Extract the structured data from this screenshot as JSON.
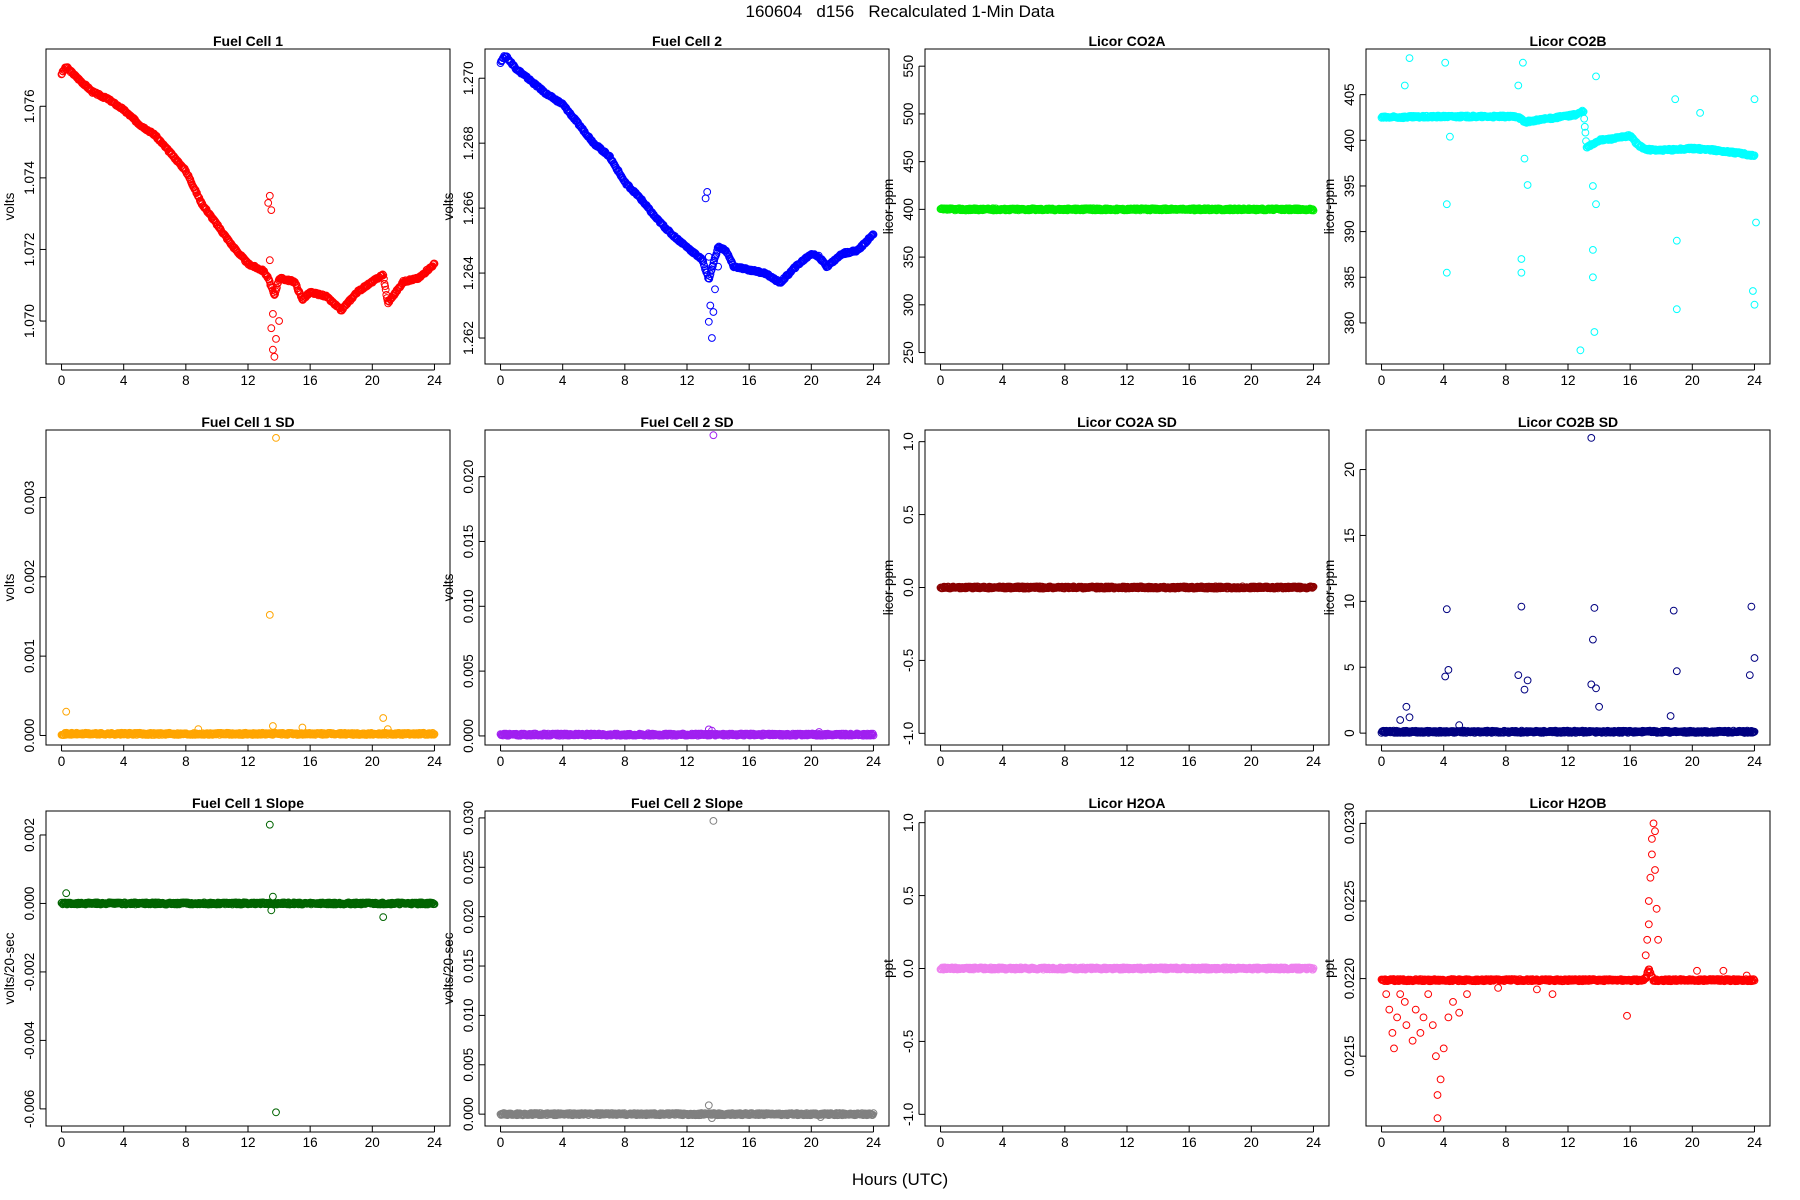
{
  "figure": {
    "title": "160604   d156   Recalculated 1-Min Data",
    "xlabel": "Hours (UTC)"
  },
  "chart_data": [
    {
      "id": "fc1",
      "type": "scatter",
      "title": "Fuel Cell 1",
      "ylabel": "volts",
      "color": "#ff0000",
      "xlim": [
        -1,
        25
      ],
      "ylim": [
        1.0688,
        1.0776
      ],
      "xticks": [
        "0",
        "4",
        "8",
        "12",
        "16",
        "20",
        "24"
      ],
      "yticks": [
        "1.070",
        "1.072",
        "1.074",
        "1.076"
      ],
      "trend": [
        [
          0,
          1.0769
        ],
        [
          0.3,
          1.0771
        ],
        [
          1,
          1.0768
        ],
        [
          2,
          1.0764
        ],
        [
          3,
          1.0762
        ],
        [
          4,
          1.0759
        ],
        [
          5,
          1.0755
        ],
        [
          6,
          1.0752
        ],
        [
          7,
          1.0747
        ],
        [
          8,
          1.0742
        ],
        [
          9,
          1.0733
        ],
        [
          10,
          1.0727
        ],
        [
          11,
          1.0721
        ],
        [
          12,
          1.0716
        ],
        [
          13,
          1.0714
        ],
        [
          13.3,
          1.0712
        ],
        [
          13.7,
          1.0707
        ],
        [
          14,
          1.0712
        ],
        [
          15,
          1.0711
        ],
        [
          15.5,
          1.0706
        ],
        [
          16,
          1.0708
        ],
        [
          17,
          1.0707
        ],
        [
          18,
          1.0703
        ],
        [
          19,
          1.0708
        ],
        [
          20,
          1.0711
        ],
        [
          20.7,
          1.0713
        ],
        [
          21,
          1.0705
        ],
        [
          22,
          1.0711
        ],
        [
          23,
          1.0712
        ],
        [
          24,
          1.0716
        ]
      ],
      "outliers": [
        [
          13.3,
          1.0733
        ],
        [
          13.4,
          1.0735
        ],
        [
          13.5,
          1.0731
        ],
        [
          13.4,
          1.0717
        ],
        [
          13.6,
          1.0702
        ],
        [
          13.5,
          1.0698
        ],
        [
          13.6,
          1.0692
        ],
        [
          13.7,
          1.069
        ],
        [
          13.8,
          1.0695
        ],
        [
          14.0,
          1.07
        ]
      ]
    },
    {
      "id": "fc2",
      "type": "scatter",
      "title": "Fuel Cell 2",
      "ylabel": "volts",
      "color": "#0000ff",
      "xlim": [
        -1,
        25
      ],
      "ylim": [
        1.2612,
        1.2709
      ],
      "xticks": [
        "0",
        "4",
        "8",
        "12",
        "16",
        "20",
        "24"
      ],
      "yticks": [
        "1.262",
        "1.264",
        "1.266",
        "1.268",
        "1.270"
      ],
      "trend": [
        [
          0,
          1.2705
        ],
        [
          0.3,
          1.2707
        ],
        [
          1,
          1.2703
        ],
        [
          2,
          1.2699
        ],
        [
          3,
          1.2695
        ],
        [
          4,
          1.2692
        ],
        [
          5,
          1.2686
        ],
        [
          6,
          1.268
        ],
        [
          7,
          1.2676
        ],
        [
          8,
          1.2668
        ],
        [
          9,
          1.2663
        ],
        [
          10,
          1.2657
        ],
        [
          11,
          1.2652
        ],
        [
          12,
          1.2648
        ],
        [
          12.5,
          1.2646
        ],
        [
          13,
          1.2644
        ],
        [
          13.4,
          1.2638
        ],
        [
          14,
          1.2648
        ],
        [
          14.5,
          1.2647
        ],
        [
          15,
          1.2642
        ],
        [
          16,
          1.2641
        ],
        [
          17,
          1.264
        ],
        [
          18,
          1.2637
        ],
        [
          19,
          1.2642
        ],
        [
          20,
          1.2646
        ],
        [
          20.5,
          1.2645
        ],
        [
          21,
          1.2642
        ],
        [
          22,
          1.2646
        ],
        [
          23,
          1.2647
        ],
        [
          24,
          1.2652
        ]
      ],
      "outliers": [
        [
          13.2,
          1.2663
        ],
        [
          13.3,
          1.2665
        ],
        [
          13.4,
          1.2645
        ],
        [
          13.5,
          1.263
        ],
        [
          13.4,
          1.2625
        ],
        [
          13.6,
          1.262
        ],
        [
          13.7,
          1.2628
        ],
        [
          13.8,
          1.2635
        ],
        [
          14.0,
          1.2642
        ]
      ]
    },
    {
      "id": "co2a",
      "type": "scatter",
      "title": "Licor CO2A",
      "ylabel": "licor-ppm",
      "color": "#00ee00",
      "xlim": [
        -1,
        25
      ],
      "ylim": [
        238,
        568
      ],
      "xticks": [
        "0",
        "4",
        "8",
        "12",
        "16",
        "20",
        "24"
      ],
      "yticks": [
        "250",
        "300",
        "350",
        "400",
        "450",
        "500",
        "550"
      ],
      "trend": [
        [
          0,
          400
        ],
        [
          24,
          400
        ]
      ],
      "outliers": []
    },
    {
      "id": "co2b",
      "type": "scatter",
      "title": "Licor CO2B",
      "ylabel": "licor-ppm",
      "color": "#00ffff",
      "xlim": [
        -1,
        25
      ],
      "ylim": [
        375.5,
        410
      ],
      "xticks": [
        "0",
        "4",
        "8",
        "12",
        "16",
        "20",
        "24"
      ],
      "yticks": [
        "380",
        "385",
        "390",
        "395",
        "400",
        "405"
      ],
      "trend": [
        [
          0,
          402.5
        ],
        [
          4,
          402.6
        ],
        [
          8.8,
          402.6
        ],
        [
          9.2,
          402.0
        ],
        [
          12.5,
          402.8
        ],
        [
          13.0,
          403.2
        ],
        [
          13.2,
          399.2
        ],
        [
          14,
          400.0
        ],
        [
          15,
          400.2
        ],
        [
          16,
          400.5
        ],
        [
          16.5,
          399.5
        ],
        [
          17,
          399.0
        ],
        [
          18,
          398.9
        ],
        [
          19,
          399.0
        ],
        [
          20,
          399.1
        ],
        [
          21,
          399.0
        ],
        [
          22,
          398.8
        ],
        [
          23,
          398.6
        ],
        [
          24,
          398.3
        ]
      ],
      "outliers": [
        [
          1.5,
          406
        ],
        [
          1.8,
          409
        ],
        [
          4.1,
          408.5
        ],
        [
          4.2,
          393.0
        ],
        [
          4.2,
          385.5
        ],
        [
          4.4,
          400.4
        ],
        [
          8.8,
          406
        ],
        [
          9.0,
          387
        ],
        [
          9.0,
          385.5
        ],
        [
          9.1,
          408.5
        ],
        [
          9.2,
          398
        ],
        [
          9.4,
          395.1
        ],
        [
          12.8,
          377
        ],
        [
          13.6,
          388
        ],
        [
          13.7,
          379
        ],
        [
          13.6,
          385
        ],
        [
          13.8,
          393
        ],
        [
          13.8,
          407
        ],
        [
          13.6,
          395
        ],
        [
          18.9,
          404.5
        ],
        [
          19.0,
          389
        ],
        [
          19.0,
          381.5
        ],
        [
          20.5,
          403
        ],
        [
          23.9,
          383.5
        ],
        [
          24.0,
          382
        ],
        [
          24.0,
          404.5
        ],
        [
          24.1,
          391
        ]
      ]
    },
    {
      "id": "fc1sd",
      "type": "scatter",
      "title": "Fuel Cell 1 SD",
      "ylabel": "volts",
      "color": "#ffa500",
      "xlim": [
        -1,
        25
      ],
      "ylim": [
        -0.00012,
        0.00385
      ],
      "xticks": [
        "0",
        "4",
        "8",
        "12",
        "16",
        "20",
        "24"
      ],
      "yticks": [
        "0.000",
        "0.001",
        "0.002",
        "0.003"
      ],
      "trend": [
        [
          0,
          2e-05
        ],
        [
          24,
          2e-05
        ]
      ],
      "outliers": [
        [
          0.3,
          0.0003
        ],
        [
          8.8,
          8e-05
        ],
        [
          13.4,
          0.00152
        ],
        [
          13.8,
          0.00375
        ],
        [
          13.6,
          0.00012
        ],
        [
          15.5,
          0.0001
        ],
        [
          20.7,
          0.00022
        ],
        [
          21,
          8e-05
        ]
      ]
    },
    {
      "id": "fc2sd",
      "type": "scatter",
      "title": "Fuel Cell 2 SD",
      "ylabel": "volts",
      "color": "#a020f0",
      "xlim": [
        -1,
        25
      ],
      "ylim": [
        -0.0007,
        0.0236
      ],
      "xticks": [
        "0",
        "4",
        "8",
        "12",
        "16",
        "20",
        "24"
      ],
      "yticks": [
        "0.000",
        "0.005",
        "0.010",
        "0.015",
        "0.020"
      ],
      "trend": [
        [
          0,
          0.0001
        ],
        [
          24,
          0.0001
        ]
      ],
      "outliers": [
        [
          13.7,
          0.0232
        ],
        [
          13.4,
          0.0005
        ],
        [
          13.6,
          0.0004
        ],
        [
          9.5,
          0.0002
        ],
        [
          20.5,
          0.0003
        ]
      ]
    },
    {
      "id": "co2asd",
      "type": "scatter",
      "title": "Licor CO2A SD",
      "ylabel": "licor-ppm",
      "color": "#8b0000",
      "xlim": [
        -1,
        25
      ],
      "ylim": [
        -1.08,
        1.08
      ],
      "xticks": [
        "0",
        "4",
        "8",
        "12",
        "16",
        "20",
        "24"
      ],
      "yticks": [
        "-1.0",
        "-0.5",
        "0.0",
        "0.5",
        "1.0"
      ],
      "trend": [
        [
          0,
          0
        ],
        [
          24,
          0
        ]
      ],
      "outliers": []
    },
    {
      "id": "co2bsd",
      "type": "scatter",
      "title": "Licor CO2B SD",
      "ylabel": "licor-ppm",
      "color": "#000080",
      "xlim": [
        -1,
        25
      ],
      "ylim": [
        -0.9,
        23.0
      ],
      "xticks": [
        "0",
        "4",
        "8",
        "12",
        "16",
        "20",
        "24"
      ],
      "yticks": [
        "0",
        "5",
        "10",
        "15",
        "20"
      ],
      "trend": [
        [
          0,
          0.1
        ],
        [
          24,
          0.1
        ]
      ],
      "outliers": [
        [
          1.2,
          1.0
        ],
        [
          1.6,
          2.0
        ],
        [
          1.8,
          1.2
        ],
        [
          4.2,
          9.4
        ],
        [
          4.1,
          4.3
        ],
        [
          4.3,
          4.8
        ],
        [
          5.0,
          0.6
        ],
        [
          8.8,
          4.4
        ],
        [
          9.0,
          9.6
        ],
        [
          9.2,
          3.3
        ],
        [
          9.4,
          4.0
        ],
        [
          13.5,
          22.4
        ],
        [
          13.7,
          9.5
        ],
        [
          13.6,
          7.1
        ],
        [
          13.5,
          3.7
        ],
        [
          13.8,
          3.4
        ],
        [
          14.0,
          2.0
        ],
        [
          18.8,
          9.3
        ],
        [
          19.0,
          4.7
        ],
        [
          18.6,
          1.3
        ],
        [
          23.8,
          9.6
        ],
        [
          23.7,
          4.4
        ],
        [
          24.0,
          5.7
        ]
      ]
    },
    {
      "id": "fc1slope",
      "type": "scatter",
      "title": "Fuel Cell 1 Slope",
      "ylabel": "volts/20-sec",
      "color": "#006400",
      "xlim": [
        -1,
        25
      ],
      "ylim": [
        -0.0065,
        0.0027
      ],
      "xticks": [
        "0",
        "4",
        "8",
        "12",
        "16",
        "20",
        "24"
      ],
      "yticks": [
        "-0.006",
        "-0.004",
        "-0.002",
        "0.000",
        "0.002"
      ],
      "trend": [
        [
          0,
          0
        ],
        [
          24,
          0
        ]
      ],
      "outliers": [
        [
          0.3,
          0.0003
        ],
        [
          13.4,
          0.0023
        ],
        [
          13.8,
          -0.0061
        ],
        [
          20.7,
          -0.0004
        ],
        [
          13.6,
          0.0002
        ],
        [
          13.5,
          -0.0002
        ]
      ]
    },
    {
      "id": "fc2slope",
      "type": "scatter",
      "title": "Fuel Cell 2 Slope",
      "ylabel": "volts/20-sec",
      "color": "#808080",
      "xlim": [
        -1,
        25
      ],
      "ylim": [
        -0.0012,
        0.0307
      ],
      "xticks": [
        "0",
        "4",
        "8",
        "12",
        "16",
        "20",
        "24"
      ],
      "yticks": [
        "0.000",
        "0.005",
        "0.010",
        "0.015",
        "0.020",
        "0.025",
        "0.030"
      ],
      "trend": [
        [
          0,
          0
        ],
        [
          24,
          0
        ]
      ],
      "outliers": [
        [
          13.7,
          0.0297
        ],
        [
          13.4,
          0.0009
        ],
        [
          13.6,
          -0.0004
        ],
        [
          20.6,
          -0.0003
        ]
      ]
    },
    {
      "id": "h2oa",
      "type": "scatter",
      "title": "Licor H2OA",
      "ylabel": "ppt",
      "color": "#ee82ee",
      "xlim": [
        -1,
        25
      ],
      "ylim": [
        -1.08,
        1.08
      ],
      "xticks": [
        "0",
        "4",
        "8",
        "12",
        "16",
        "20",
        "24"
      ],
      "yticks": [
        "-1.0",
        "-0.5",
        "0.0",
        "0.5",
        "1.0"
      ],
      "trend": [
        [
          0,
          0
        ],
        [
          24,
          0
        ]
      ],
      "outliers": []
    },
    {
      "id": "h2ob",
      "type": "scatter",
      "title": "Licor H2OB",
      "ylabel": "ppt",
      "color": "#ff0000",
      "xlim": [
        -1,
        25
      ],
      "ylim": [
        0.02105,
        0.02308
      ],
      "xticks": [
        "0",
        "4",
        "8",
        "12",
        "16",
        "20",
        "24"
      ],
      "yticks": [
        "0.0215",
        "0.0220",
        "0.0225",
        "0.0230"
      ],
      "trend": [
        [
          0,
          0.02199
        ],
        [
          16.8,
          0.02199
        ],
        [
          17,
          0.022
        ],
        [
          17.2,
          0.02206
        ],
        [
          17.5,
          0.02199
        ],
        [
          24,
          0.02199
        ]
      ],
      "outliers": [
        [
          0.3,
          0.0219
        ],
        [
          0.5,
          0.0218
        ],
        [
          0.7,
          0.02165
        ],
        [
          0.8,
          0.02155
        ],
        [
          1.0,
          0.02175
        ],
        [
          1.2,
          0.0219
        ],
        [
          1.5,
          0.02185
        ],
        [
          1.6,
          0.0217
        ],
        [
          2.0,
          0.0216
        ],
        [
          2.2,
          0.0218
        ],
        [
          2.5,
          0.02165
        ],
        [
          2.7,
          0.02175
        ],
        [
          3.0,
          0.0219
        ],
        [
          3.3,
          0.0217
        ],
        [
          3.5,
          0.0215
        ],
        [
          3.6,
          0.02125
        ],
        [
          3.6,
          0.0211
        ],
        [
          3.8,
          0.02135
        ],
        [
          4.0,
          0.02155
        ],
        [
          4.3,
          0.02175
        ],
        [
          4.6,
          0.02185
        ],
        [
          5.0,
          0.02178
        ],
        [
          5.5,
          0.0219
        ],
        [
          7.5,
          0.02194
        ],
        [
          10,
          0.02193
        ],
        [
          11,
          0.0219
        ],
        [
          15.8,
          0.02176
        ],
        [
          17.0,
          0.02215
        ],
        [
          17.1,
          0.02225
        ],
        [
          17.2,
          0.02235
        ],
        [
          17.2,
          0.0225
        ],
        [
          17.3,
          0.02265
        ],
        [
          17.4,
          0.0228
        ],
        [
          17.4,
          0.0229
        ],
        [
          17.5,
          0.023
        ],
        [
          17.6,
          0.02295
        ],
        [
          17.6,
          0.0227
        ],
        [
          17.7,
          0.02245
        ],
        [
          17.8,
          0.02225
        ],
        [
          20.3,
          0.02205
        ],
        [
          22,
          0.02205
        ],
        [
          23.5,
          0.02202
        ]
      ]
    }
  ]
}
